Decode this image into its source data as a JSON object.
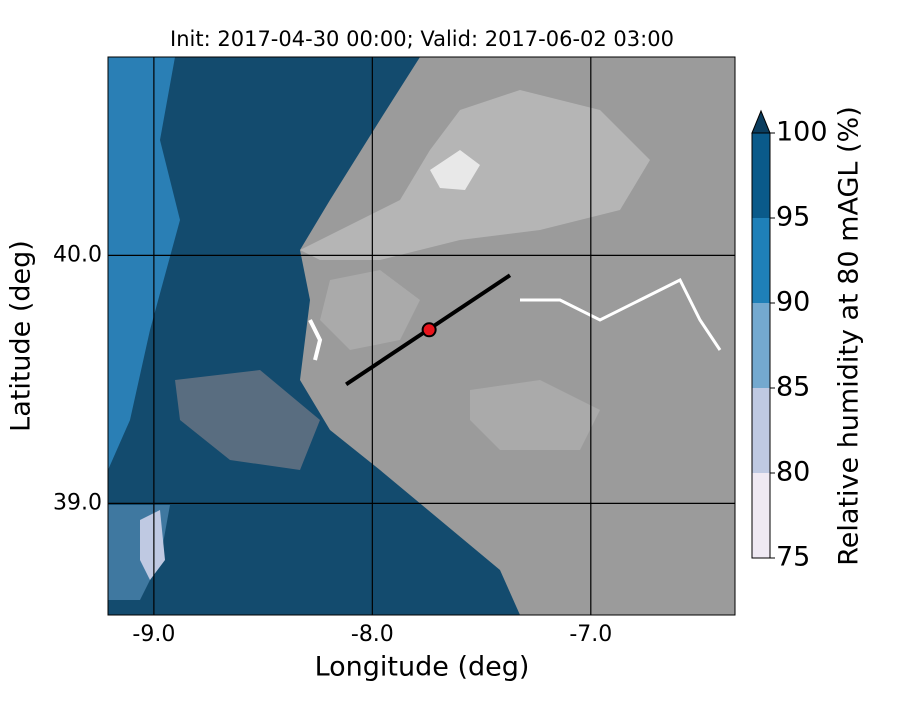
{
  "chart_data": {
    "type": "map",
    "title": "Init: 2017-04-30 00:00; Valid: 2017-06-02 03:00",
    "x_label": "Longitude (deg)",
    "y_label": "Latitude (deg)",
    "xlim": [
      -9.21,
      -6.34
    ],
    "ylim": [
      38.55,
      40.8
    ],
    "xticks": [
      {
        "value": -9,
        "label": "-9.0"
      },
      {
        "value": -8,
        "label": "-8.0"
      },
      {
        "value": -7,
        "label": "-7.0"
      }
    ],
    "yticks": [
      {
        "value": 39,
        "label": "39.0"
      },
      {
        "value": 40,
        "label": "40.0"
      }
    ],
    "grid": true,
    "transect": {
      "x": [
        -8.12,
        -7.37
      ],
      "y": [
        39.48,
        39.92
      ],
      "color": "#000000"
    },
    "marker": {
      "x": -7.74,
      "y": 39.7,
      "color": "#e8141c"
    },
    "colorbar": {
      "label": "Relative humidity at 80 mAGL (%)",
      "levels": [
        75,
        80,
        85,
        90,
        95,
        100
      ],
      "colors": [
        "#efe9f3",
        "#bfc9e2",
        "#74a9cf",
        "#1f80b8",
        "#0a5a8a"
      ],
      "extend": "max",
      "extend_color": "#0b3d5e"
    }
  }
}
